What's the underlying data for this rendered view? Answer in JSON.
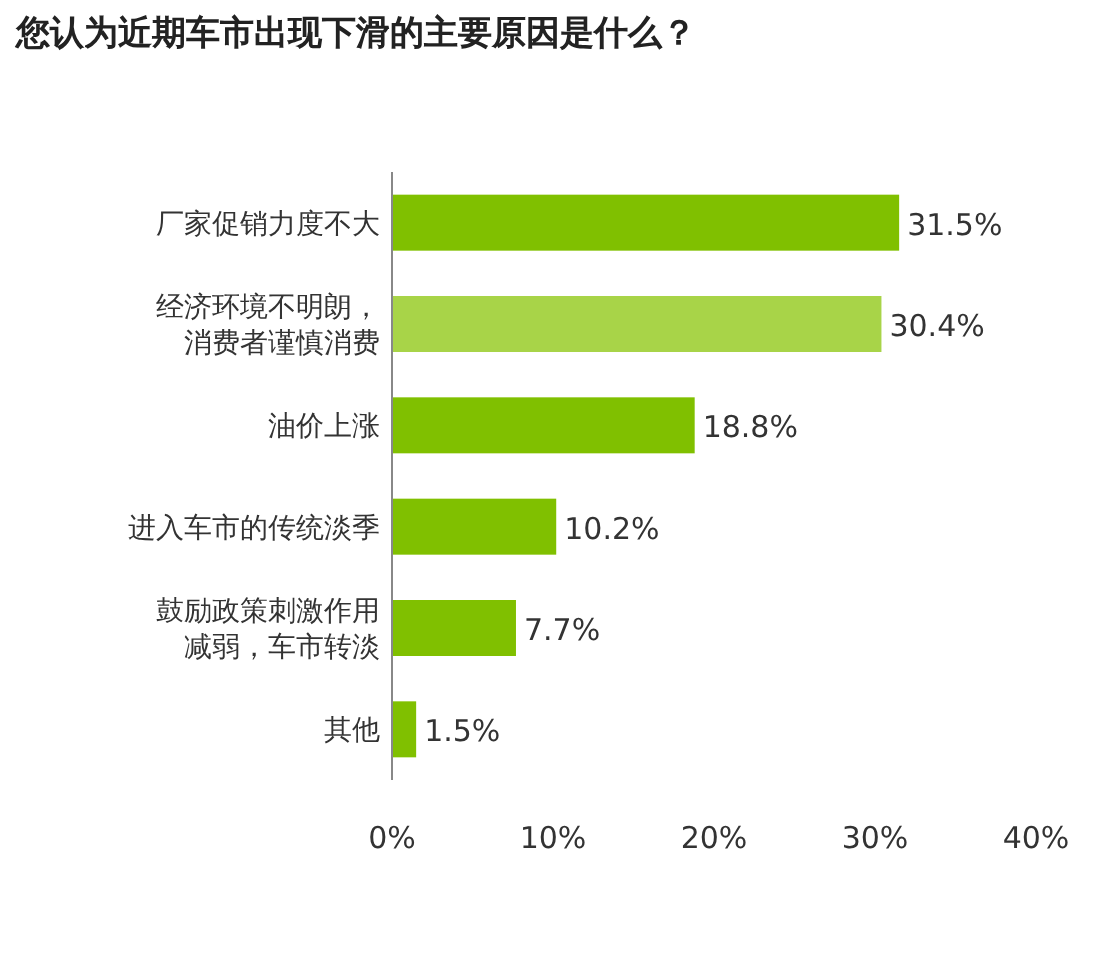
{
  "chart_data": {
    "type": "bar",
    "orientation": "horizontal",
    "title": "您认为近期车市出现下滑的主要原因是什么？",
    "categories": [
      "厂家促销力度不大",
      "经济环境不明朗，消费者谨慎消费",
      "油价上涨",
      "进入车市的传统淡季",
      "鼓励政策刺激作用减弱，车市转淡",
      "其他"
    ],
    "values": [
      31.5,
      30.4,
      18.8,
      10.2,
      7.7,
      1.5
    ],
    "value_labels": [
      "31.5%",
      "30.4%",
      "18.8%",
      "10.2%",
      "7.7%",
      "1.5%"
    ],
    "colors": [
      "#80c000",
      "#a8d448",
      "#80c000",
      "#80c000",
      "#80c000",
      "#80c000"
    ],
    "xlim": [
      0,
      40
    ],
    "xticks": [
      {
        "value": 0,
        "label": "0%"
      },
      {
        "value": 10,
        "label": "10%"
      },
      {
        "value": 20,
        "label": "20%"
      },
      {
        "value": 30,
        "label": "30%"
      },
      {
        "value": 40,
        "label": "40%"
      }
    ],
    "grid": false
  }
}
